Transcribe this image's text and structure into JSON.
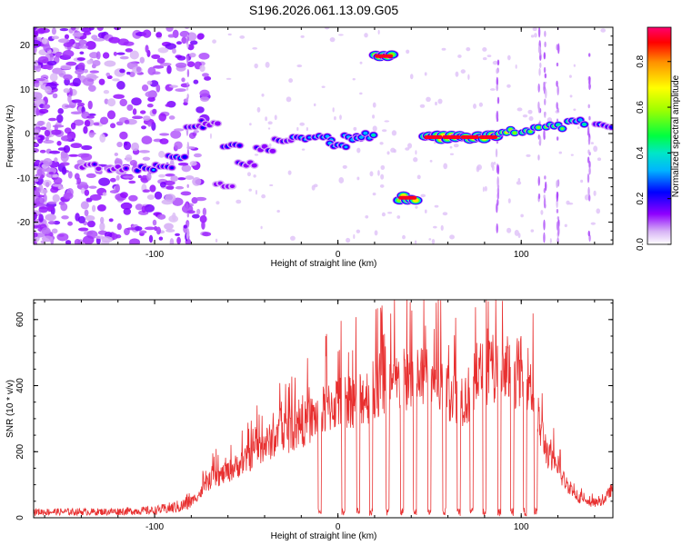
{
  "figure_title": "S196.2026.061.13.09.G05",
  "chart_data": [
    {
      "type": "heatmap",
      "title": "S196.2026.061.13.09.G05",
      "xlabel": "Height of straight line (km)",
      "ylabel": "Frequency (Hz)",
      "xlim": [
        -166,
        150
      ],
      "ylim": [
        -25,
        24
      ],
      "x_ticks": [
        -100,
        0,
        100
      ],
      "x_tick_labels": [
        "-100",
        "0",
        "100"
      ],
      "y_ticks": [
        -20,
        -10,
        0,
        10,
        20
      ],
      "y_tick_labels": [
        "-20",
        "-10",
        "0",
        "10",
        "20"
      ],
      "colorbar": {
        "label": "Normalized spectral amplitude",
        "range": [
          0,
          0.95
        ],
        "ticks": [
          0.0,
          0.2,
          0.4,
          0.6,
          0.8
        ],
        "tick_labels": [
          "0.0",
          "0.2",
          "0.4",
          "0.6",
          "0.8"
        ]
      },
      "ridges": [
        {
          "x": -135,
          "y": -7.5,
          "amp": 0.25
        },
        {
          "x": -120,
          "y": -7.8,
          "amp": 0.25
        },
        {
          "x": -105,
          "y": -8.0,
          "amp": 0.35
        },
        {
          "x": -95,
          "y": -7.5,
          "amp": 0.3
        },
        {
          "x": -88,
          "y": -5.0,
          "amp": 0.35
        },
        {
          "x": -78,
          "y": 1.5,
          "amp": 0.3
        },
        {
          "x": -70,
          "y": 2.5,
          "amp": 0.25
        },
        {
          "x": -58,
          "y": -3.0,
          "amp": 0.35
        },
        {
          "x": -62,
          "y": -11.5,
          "amp": 0.25
        },
        {
          "x": -50,
          "y": -7.0,
          "amp": 0.25
        },
        {
          "x": -40,
          "y": -3.5,
          "amp": 0.3
        },
        {
          "x": -30,
          "y": -1.5,
          "amp": 0.3
        },
        {
          "x": -20,
          "y": -1.0,
          "amp": 0.4
        },
        {
          "x": -8,
          "y": -1.0,
          "amp": 0.45
        },
        {
          "x": 0,
          "y": -2.5,
          "amp": 0.45
        },
        {
          "x": 8,
          "y": -1.0,
          "amp": 0.45
        },
        {
          "x": 15,
          "y": -0.5,
          "amp": 0.5
        },
        {
          "x": 25,
          "y": 17.5,
          "amp": 0.95
        },
        {
          "x": 38,
          "y": -14.5,
          "amp": 0.95
        },
        {
          "x": 52,
          "y": -0.8,
          "amp": 0.95
        },
        {
          "x": 62,
          "y": -0.8,
          "amp": 0.9
        },
        {
          "x": 72,
          "y": -0.8,
          "amp": 0.9
        },
        {
          "x": 82,
          "y": -0.8,
          "amp": 0.85
        },
        {
          "x": 92,
          "y": 0.3,
          "amp": 0.8
        },
        {
          "x": 105,
          "y": 0.8,
          "amp": 0.7
        },
        {
          "x": 118,
          "y": 1.5,
          "amp": 0.7
        },
        {
          "x": 130,
          "y": 2.5,
          "amp": 0.55
        },
        {
          "x": 145,
          "y": 2.0,
          "amp": 0.35
        }
      ]
    },
    {
      "type": "line",
      "xlabel": "Height of straight line (km)",
      "ylabel": "SNR (10 * v/v)",
      "xlim": [
        -166,
        150
      ],
      "ylim": [
        0,
        660
      ],
      "x_ticks": [
        -100,
        0,
        100
      ],
      "x_tick_labels": [
        "-100",
        "0",
        "100"
      ],
      "y_ticks": [
        0,
        200,
        400,
        600
      ],
      "y_tick_labels": [
        "0",
        "200",
        "400",
        "600"
      ],
      "color": "#e83030",
      "envelope": {
        "x": [
          -166,
          -130,
          -100,
          -85,
          -80,
          -75,
          -70,
          -60,
          -50,
          -40,
          -30,
          -20,
          -10,
          -5,
          0,
          10,
          20,
          30,
          40,
          50,
          60,
          70,
          80,
          90,
          100,
          105,
          110,
          115,
          120,
          125,
          130,
          135,
          140,
          145,
          150
        ],
        "y": [
          18,
          18,
          22,
          35,
          55,
          80,
          120,
          150,
          190,
          240,
          270,
          300,
          340,
          360,
          380,
          390,
          410,
          430,
          460,
          450,
          420,
          390,
          490,
          460,
          480,
          450,
          300,
          200,
          150,
          110,
          70,
          50,
          45,
          55,
          100
        ]
      },
      "dropouts_x": [
        -10,
        3,
        11,
        18,
        27,
        35,
        42,
        50,
        58,
        66,
        73,
        80,
        88,
        95,
        102,
        108
      ]
    }
  ]
}
